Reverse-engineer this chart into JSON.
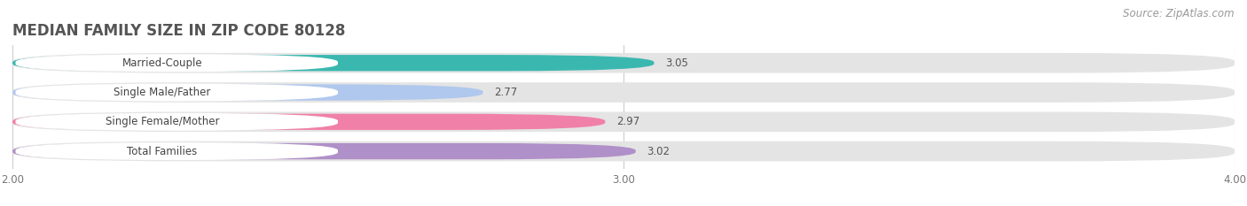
{
  "title": "MEDIAN FAMILY SIZE IN ZIP CODE 80128",
  "source": "Source: ZipAtlas.com",
  "categories": [
    "Married-Couple",
    "Single Male/Father",
    "Single Female/Mother",
    "Total Families"
  ],
  "values": [
    3.05,
    2.77,
    2.97,
    3.02
  ],
  "bar_colors": [
    "#3ab8b0",
    "#b0c8ee",
    "#f080a8",
    "#b090c8"
  ],
  "bar_bg_color": "#e4e4e4",
  "xlim": [
    2.0,
    4.0
  ],
  "xticks": [
    2.0,
    3.0,
    4.0
  ],
  "xtick_labels": [
    "2.00",
    "3.00",
    "4.00"
  ],
  "background_color": "#ffffff",
  "title_fontsize": 12,
  "label_fontsize": 8.5,
  "value_fontsize": 8.5,
  "source_fontsize": 8.5
}
